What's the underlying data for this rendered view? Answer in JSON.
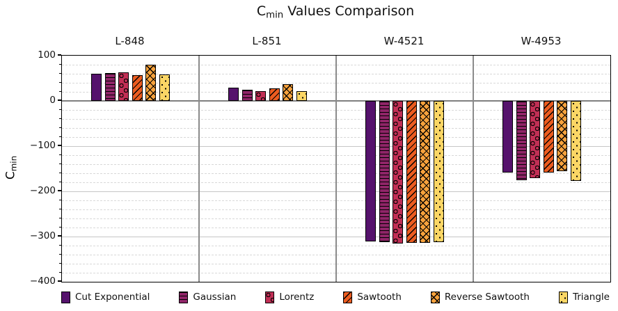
{
  "title": {
    "prefix": "C",
    "subscript": "min",
    "suffix": " Values Comparison"
  },
  "y_axis": {
    "label_prefix": "C",
    "label_subscript": "min",
    "ticks": [
      100,
      0,
      -100,
      -200,
      -300,
      -400
    ],
    "minor_step": 20
  },
  "chart_data": {
    "type": "bar",
    "groups": [
      "L-848",
      "L-851",
      "W-4521",
      "W-4953"
    ],
    "series": [
      {
        "name": "Cut Exponential",
        "color": "#55126C",
        "hatch": "solid",
        "values": [
          60,
          29,
          -310,
          -158
        ]
      },
      {
        "name": "Gaussian",
        "color": "#902568",
        "hatch": "horizontal-lines",
        "values": [
          61,
          24,
          -313,
          -176
        ]
      },
      {
        "name": "Lorentz",
        "color": "#C12F55",
        "hatch": "circles",
        "values": [
          63,
          21,
          -315,
          -170
        ]
      },
      {
        "name": "Sawtooth",
        "color": "#EC5C20",
        "hatch": "diagonal-lines",
        "values": [
          57,
          27,
          -314,
          -158
        ]
      },
      {
        "name": "Reverse Sawtooth",
        "color": "#F8A23C",
        "hatch": "crosshatch",
        "values": [
          80,
          37,
          -314,
          -155
        ]
      },
      {
        "name": "Triangle",
        "color": "#FBD665",
        "hatch": "dots",
        "values": [
          59,
          22,
          -313,
          -177
        ]
      }
    ],
    "ylim": [
      -400,
      100
    ],
    "grid": true,
    "legend_position": "bottom",
    "colors": {
      "major_grid": "#c6c6c6",
      "minor_grid": "#d8d8d8",
      "zero_line": "#7f7f7f",
      "panel_divider": "#8b8b8b",
      "frame": "#000000"
    }
  }
}
